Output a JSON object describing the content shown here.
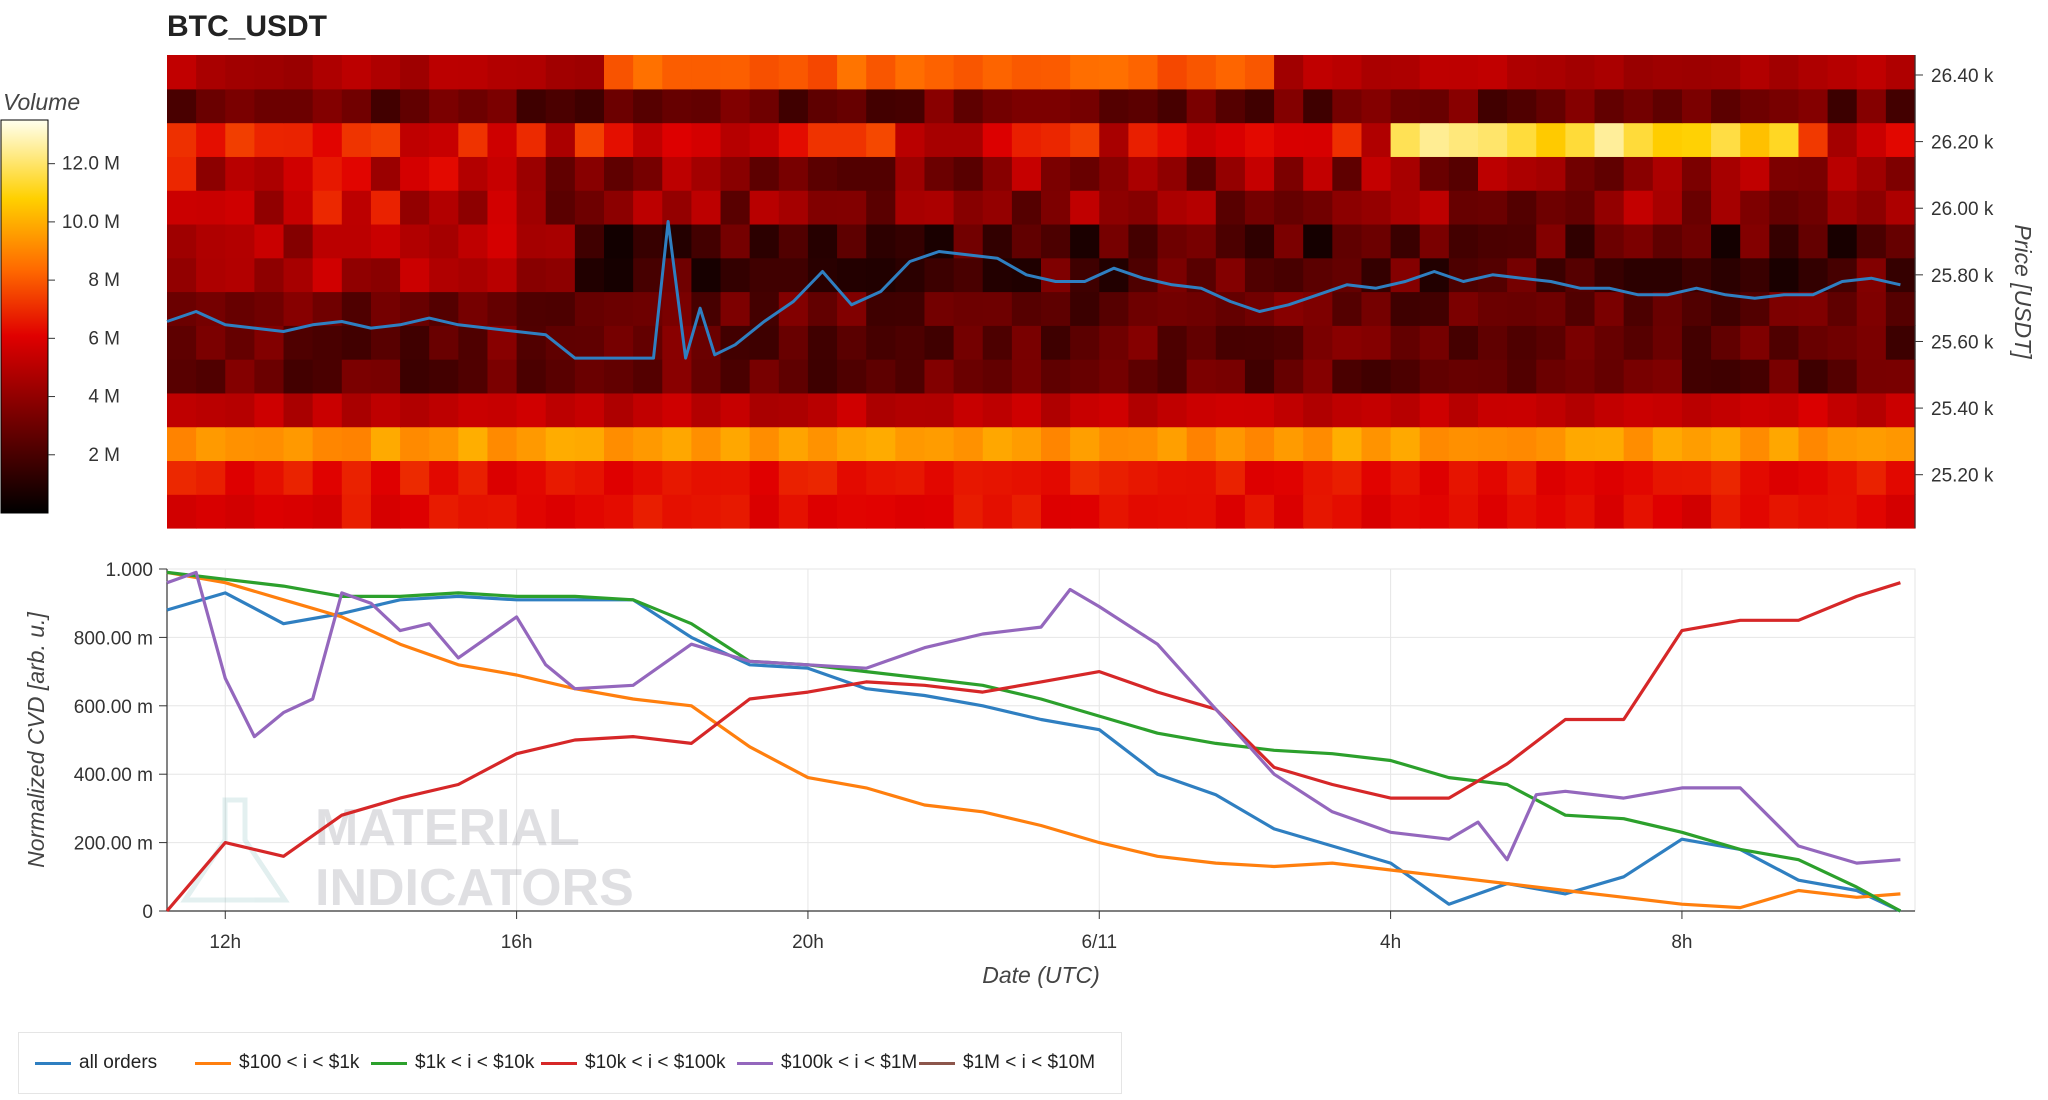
{
  "title": "BTC_USDT",
  "colorbar": {
    "label": "Volume",
    "ticks": [
      "2 M",
      "4 M",
      "6 M",
      "8 M",
      "10.0 M",
      "12.0 M"
    ]
  },
  "watermark": [
    "MATERIAL",
    "INDICATORS"
  ],
  "chart_data": [
    {
      "type": "heatmap",
      "title": "BTC_USDT",
      "ylabel": "Price [USDT]",
      "y_ticks": [
        "25.20 k",
        "25.40 k",
        "25.60 k",
        "25.80 k",
        "26.00 k",
        "26.20 k",
        "26.40 k"
      ],
      "y_tick_values": [
        25200,
        25400,
        25600,
        25800,
        26000,
        26200,
        26400
      ],
      "ylim": [
        25040,
        26460
      ],
      "x_range_hours": [
        0,
        60
      ],
      "price_bins": 14,
      "volume_range": [
        0,
        13500000
      ],
      "price_series": {
        "color": "#2f7fc1",
        "points": [
          [
            0,
            25660
          ],
          [
            1,
            25690
          ],
          [
            2,
            25650
          ],
          [
            3,
            25640
          ],
          [
            4,
            25630
          ],
          [
            5,
            25650
          ],
          [
            6,
            25660
          ],
          [
            7,
            25640
          ],
          [
            8,
            25650
          ],
          [
            9,
            25670
          ],
          [
            10,
            25650
          ],
          [
            11,
            25640
          ],
          [
            12,
            25630
          ],
          [
            13,
            25620
          ],
          [
            14,
            25550
          ],
          [
            15,
            25550
          ],
          [
            16,
            25550
          ],
          [
            16.7,
            25550
          ],
          [
            17.2,
            25960
          ],
          [
            17.8,
            25550
          ],
          [
            18.3,
            25700
          ],
          [
            18.8,
            25560
          ],
          [
            19.5,
            25590
          ],
          [
            20.5,
            25660
          ],
          [
            21.5,
            25720
          ],
          [
            22.5,
            25810
          ],
          [
            23.5,
            25710
          ],
          [
            24.5,
            25750
          ],
          [
            25.5,
            25840
          ],
          [
            26.5,
            25870
          ],
          [
            27.5,
            25860
          ],
          [
            28.5,
            25850
          ],
          [
            29.5,
            25800
          ],
          [
            30.5,
            25780
          ],
          [
            31.5,
            25780
          ],
          [
            32.5,
            25820
          ],
          [
            33.5,
            25790
          ],
          [
            34.5,
            25770
          ],
          [
            35.5,
            25760
          ],
          [
            36.5,
            25720
          ],
          [
            37.5,
            25690
          ],
          [
            38.5,
            25710
          ],
          [
            39.5,
            25740
          ],
          [
            40.5,
            25770
          ],
          [
            41.5,
            25760
          ],
          [
            42.5,
            25780
          ],
          [
            43.5,
            25810
          ],
          [
            44.5,
            25780
          ],
          [
            45.5,
            25800
          ],
          [
            46.5,
            25790
          ],
          [
            47.5,
            25780
          ],
          [
            48.5,
            25760
          ],
          [
            49.5,
            25760
          ],
          [
            50.5,
            25740
          ],
          [
            51.5,
            25740
          ],
          [
            52.5,
            25760
          ],
          [
            53.5,
            25740
          ],
          [
            54.5,
            25730
          ],
          [
            55.5,
            25740
          ],
          [
            56.5,
            25740
          ],
          [
            57.5,
            25780
          ],
          [
            58.5,
            25790
          ],
          [
            59.5,
            25770
          ]
        ]
      }
    },
    {
      "type": "line",
      "xlabel": "Date (UTC)",
      "ylabel": "Normalized CVD [arb. u.]",
      "ylim": [
        0,
        1000
      ],
      "y_ticks": [
        "0",
        "200.00 m",
        "400.00 m",
        "600.00 m",
        "800.00 m",
        "1.000"
      ],
      "y_tick_values": [
        0,
        200,
        400,
        600,
        800,
        1000
      ],
      "x_ticks": [
        "12h",
        "16h",
        "20h",
        "6/11",
        "4h",
        "8h"
      ],
      "x_tick_values": [
        2,
        12,
        22,
        32,
        42,
        52
      ],
      "x_range": [
        0,
        60
      ],
      "series": [
        {
          "name": "all orders",
          "color": "#2f7fc1",
          "x": [
            0,
            2,
            4,
            6,
            8,
            10,
            12,
            14,
            16,
            18,
            20,
            22,
            24,
            26,
            28,
            30,
            32,
            34,
            36,
            38,
            40,
            42,
            44,
            46,
            48,
            50,
            52,
            54,
            56,
            58,
            59.5
          ],
          "y": [
            880,
            930,
            840,
            870,
            910,
            920,
            910,
            910,
            910,
            800,
            720,
            710,
            650,
            630,
            600,
            560,
            530,
            400,
            340,
            240,
            190,
            140,
            20,
            80,
            50,
            100,
            210,
            180,
            90,
            60,
            0
          ]
        },
        {
          "name": "$100 < i < $1k",
          "color": "#ff7f0e",
          "x": [
            0,
            2,
            4,
            6,
            8,
            10,
            12,
            14,
            16,
            18,
            20,
            22,
            24,
            26,
            28,
            30,
            32,
            34,
            36,
            38,
            40,
            42,
            44,
            46,
            48,
            50,
            52,
            54,
            56,
            58,
            59.5
          ],
          "y": [
            990,
            960,
            910,
            860,
            780,
            720,
            690,
            650,
            620,
            600,
            480,
            390,
            360,
            310,
            290,
            250,
            200,
            160,
            140,
            130,
            140,
            120,
            100,
            80,
            60,
            40,
            20,
            10,
            60,
            40,
            50
          ]
        },
        {
          "name": "$1k < i < $10k",
          "color": "#2ca02c",
          "x": [
            0,
            2,
            4,
            6,
            8,
            10,
            12,
            14,
            16,
            18,
            20,
            22,
            24,
            26,
            28,
            30,
            32,
            34,
            36,
            38,
            40,
            42,
            44,
            46,
            48,
            50,
            52,
            54,
            56,
            58,
            59.5
          ],
          "y": [
            990,
            970,
            950,
            920,
            920,
            930,
            920,
            920,
            910,
            840,
            730,
            720,
            700,
            680,
            660,
            620,
            570,
            520,
            490,
            470,
            460,
            440,
            390,
            370,
            280,
            270,
            230,
            180,
            150,
            70,
            0
          ]
        },
        {
          "name": "$10k < i < $100k",
          "color": "#d62728",
          "x": [
            0,
            2,
            4,
            6,
            8,
            10,
            12,
            14,
            16,
            18,
            20,
            22,
            24,
            26,
            28,
            30,
            32,
            34,
            36,
            38,
            40,
            42,
            44,
            46,
            48,
            50,
            52,
            54,
            56,
            58,
            59.5
          ],
          "y": [
            0,
            200,
            160,
            280,
            330,
            370,
            460,
            500,
            510,
            490,
            620,
            640,
            670,
            660,
            640,
            670,
            700,
            640,
            590,
            420,
            370,
            330,
            330,
            430,
            560,
            560,
            820,
            850,
            850,
            920,
            960
          ]
        },
        {
          "name": "$100k < i < $1M",
          "color": "#9467bd",
          "x": [
            0,
            1,
            2,
            3,
            4,
            5,
            6,
            7,
            8,
            9,
            10,
            11,
            12,
            13,
            14,
            16,
            18,
            20,
            22,
            24,
            26,
            28,
            30,
            31,
            32,
            34,
            36,
            38,
            40,
            42,
            44,
            45,
            46,
            47,
            48,
            50,
            52,
            54,
            56,
            58,
            59.5
          ],
          "y": [
            960,
            990,
            680,
            510,
            580,
            620,
            930,
            900,
            820,
            840,
            740,
            800,
            860,
            720,
            650,
            660,
            780,
            730,
            720,
            710,
            770,
            810,
            830,
            940,
            890,
            780,
            590,
            400,
            290,
            230,
            210,
            260,
            150,
            340,
            350,
            330,
            360,
            360,
            190,
            140,
            150
          ]
        },
        {
          "name": "$1M < i < $10M",
          "color": "#8c564b",
          "x": [],
          "y": []
        }
      ]
    }
  ],
  "legend": [
    {
      "label": "all orders",
      "color": "#2f7fc1"
    },
    {
      "label": "$100 < i < $1k",
      "color": "#ff7f0e"
    },
    {
      "label": "$1k < i < $10k",
      "color": "#2ca02c"
    },
    {
      "label": "$10k < i < $100k",
      "color": "#d62728"
    },
    {
      "label": "$100k < i < $1M",
      "color": "#9467bd"
    },
    {
      "label": "$1M < i < $10M",
      "color": "#8c564b"
    }
  ]
}
